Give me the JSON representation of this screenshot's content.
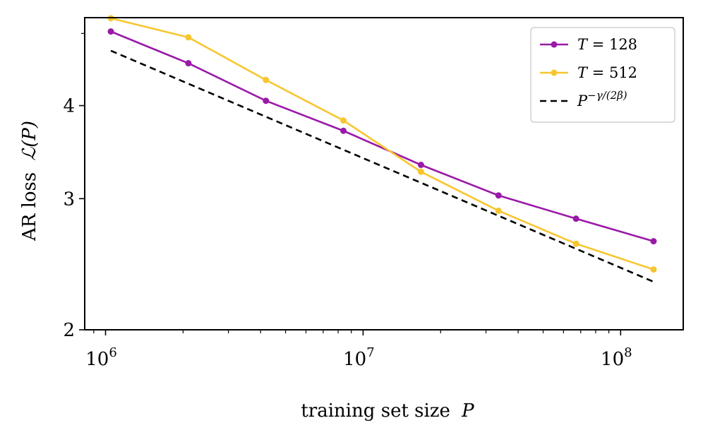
{
  "chart_data": {
    "type": "line",
    "xscale": "log",
    "yscale": "log",
    "xlim": [
      830000,
      175000000
    ],
    "ylim": [
      2,
      5.25
    ],
    "xlabel": "training set size",
    "xlabel_var": "P",
    "ylabel": "AR loss",
    "ylabel_math": "ℒ(P)",
    "x_ticks": [
      {
        "value": 1000000,
        "base": "10",
        "exp": "6"
      },
      {
        "value": 10000000,
        "base": "10",
        "exp": "7"
      },
      {
        "value": 100000000,
        "base": "10",
        "exp": "8"
      }
    ],
    "y_ticks": [
      {
        "value": 2,
        "label": "2"
      },
      {
        "value": 3,
        "label": "3"
      },
      {
        "value": 4,
        "label": "4"
      }
    ],
    "y_minor_ticks": [
      5
    ],
    "series": [
      {
        "name": "T = 128",
        "var": "T",
        "eq": " = 128",
        "color": "#9a1aa8",
        "style": "solid",
        "marker": true,
        "x": [
          1048576,
          2097152,
          4194304,
          8388608,
          16777216,
          33554432,
          67108864,
          134217728
        ],
        "y": [
          5.03,
          4.56,
          4.06,
          3.7,
          3.33,
          3.03,
          2.82,
          2.63
        ]
      },
      {
        "name": "T = 512",
        "var": "T",
        "eq": " = 512",
        "color": "#f7c62f",
        "style": "solid",
        "marker": true,
        "x": [
          1048576,
          2097152,
          4194304,
          8388608,
          16777216,
          33554432,
          67108864,
          134217728
        ],
        "y": [
          5.24,
          4.94,
          4.33,
          3.82,
          3.26,
          2.89,
          2.61,
          2.41
        ]
      },
      {
        "name": "P^{-γ/(2β)}",
        "var": "P",
        "sup": "−γ/(2β)",
        "color": "#000000",
        "style": "dashed",
        "marker": false,
        "x": [
          1048576,
          134217728
        ],
        "y": [
          4.74,
          2.32
        ]
      }
    ],
    "legend_position": "upper-right",
    "grid": false
  }
}
